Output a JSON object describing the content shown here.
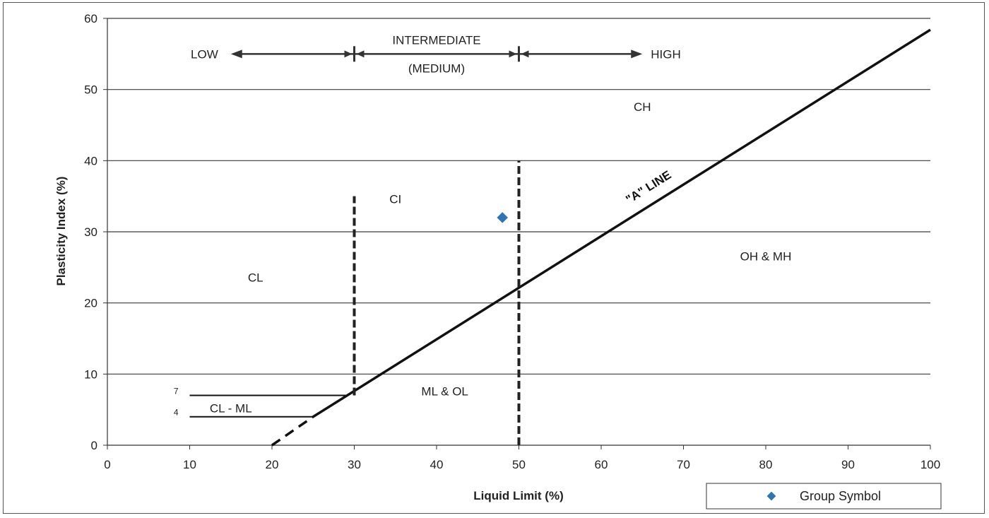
{
  "chart_data": {
    "type": "scatter",
    "xlabel": "Liquid Limit (%)",
    "ylabel": "Plasticity Index (%)",
    "xlim": [
      0,
      100
    ],
    "ylim": [
      0,
      60
    ],
    "x_ticks": [
      "0",
      "10",
      "20",
      "30",
      "40",
      "50",
      "60",
      "70",
      "80",
      "90",
      "100"
    ],
    "y_ticks": [
      "0",
      "10",
      "20",
      "30",
      "40",
      "50",
      "60"
    ],
    "grid": "horizontal",
    "series": [
      {
        "name": "Group Symbol",
        "marker": "diamond",
        "color": "#2e75b6",
        "points": [
          {
            "x": 48,
            "y": 32
          }
        ]
      }
    ],
    "a_line": {
      "label": "\"A\" LINE",
      "solid": {
        "x": [
          25,
          100
        ],
        "y": [
          4,
          58.4
        ]
      },
      "dashed": {
        "x": [
          20,
          25
        ],
        "y": [
          0,
          4
        ]
      }
    },
    "boundaries": [
      {
        "type": "dashed-vertical",
        "x": 30,
        "y": [
          7,
          35
        ]
      },
      {
        "type": "dashed-vertical",
        "x": 50,
        "y": [
          0,
          40
        ]
      },
      {
        "type": "solid-horizontal",
        "y": 7,
        "x": [
          10,
          29.1
        ]
      },
      {
        "type": "solid-horizontal",
        "y": 4,
        "x": [
          10,
          25
        ]
      }
    ],
    "boundary_labels": [
      {
        "text": "7",
        "y": 7
      },
      {
        "text": "4",
        "y": 4
      }
    ],
    "zones": [
      {
        "text": "CH",
        "x": 65,
        "y": 47
      },
      {
        "text": "CI",
        "x": 35,
        "y": 34
      },
      {
        "text": "CL",
        "x": 18,
        "y": 23
      },
      {
        "text": "OH & MH",
        "x": 80,
        "y": 26
      },
      {
        "text": "ML & OL",
        "x": 41,
        "y": 7
      },
      {
        "text": "CL - ML",
        "x": 15,
        "y": 4.6
      }
    ],
    "plasticity_ranges": {
      "y": 55,
      "arrow_start": 15,
      "arrow_end": 65,
      "dividers": [
        30,
        50
      ],
      "low": "LOW",
      "intermediate": "INTERMEDIATE",
      "medium": "(MEDIUM)",
      "high": "HIGH"
    },
    "legend": {
      "position": "bottom-right",
      "label": "Group Symbol"
    }
  }
}
